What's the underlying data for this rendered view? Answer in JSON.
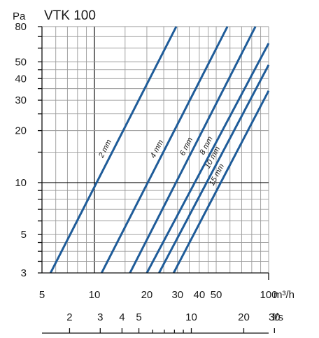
{
  "chart_data": {
    "type": "line",
    "title": "VTK 100",
    "y_unit_label": "Pa",
    "x_unit_label": "m³/h",
    "x2_unit_label": "l/s",
    "x_scale": "log",
    "y_scale": "log",
    "xlim": [
      5,
      100
    ],
    "ylim": [
      3,
      80
    ],
    "x_ticks": [
      5,
      10,
      20,
      30,
      40,
      50,
      100
    ],
    "y_ticks": [
      3,
      5,
      10,
      20,
      30,
      40,
      50,
      80
    ],
    "x_grid": [
      5,
      6,
      7,
      8,
      9,
      10,
      15,
      20,
      25,
      30,
      35,
      40,
      45,
      50,
      60,
      70,
      80,
      90,
      100
    ],
    "y_grid": [
      3,
      3.5,
      4,
      4.5,
      5,
      6,
      7,
      8,
      9,
      10,
      15,
      20,
      25,
      30,
      35,
      40,
      45,
      50,
      60,
      70,
      80
    ],
    "x_major": [
      10
    ],
    "y_major": [
      10
    ],
    "x2_ticks": [
      2,
      3,
      4,
      5,
      10,
      20,
      30
    ],
    "x2_minor": [
      6,
      7,
      8,
      9
    ],
    "series": [
      {
        "name": "2 mm",
        "x": [
          5.6,
          29.5
        ],
        "y": [
          3,
          80
        ]
      },
      {
        "name": "4 mm",
        "x": [
          11,
          58
        ],
        "y": [
          3,
          80
        ]
      },
      {
        "name": "6 mm",
        "x": [
          16,
          84
        ],
        "y": [
          3,
          80
        ]
      },
      {
        "name": "8 mm",
        "x": [
          20,
          100
        ],
        "y": [
          3,
          64
        ]
      },
      {
        "name": "10 mm",
        "x": [
          23.5,
          100
        ],
        "y": [
          3,
          48
        ]
      },
      {
        "name": "15 mm",
        "x": [
          28.5,
          100
        ],
        "y": [
          3,
          34
        ]
      }
    ],
    "line_color": "#1f5c99"
  }
}
